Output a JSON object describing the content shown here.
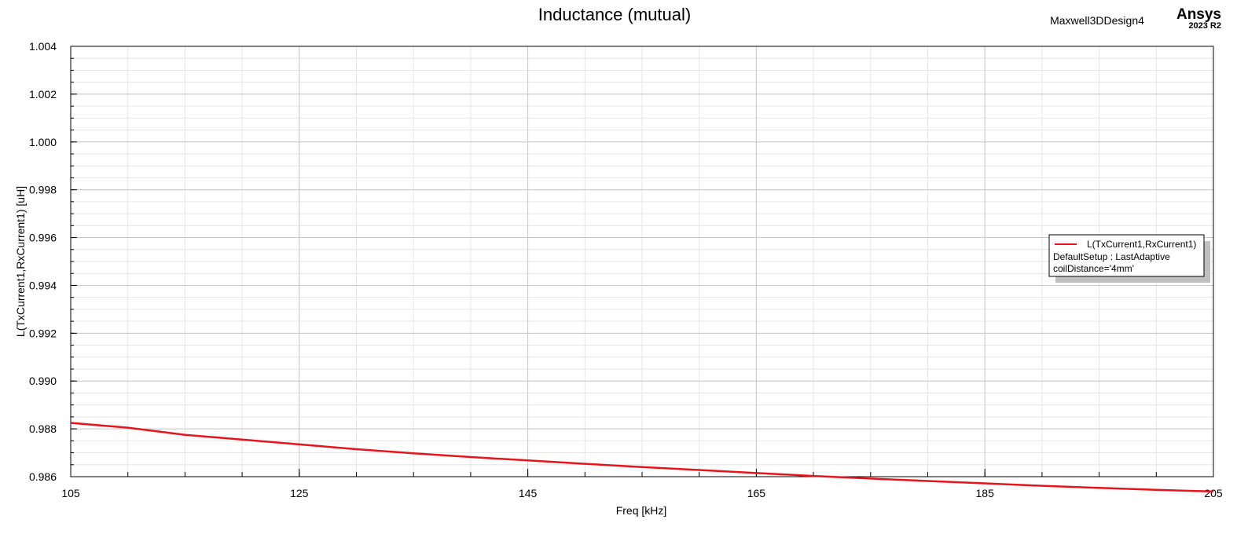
{
  "header": {
    "title": "Inductance (mutual)",
    "design_name": "Maxwell3DDesign4",
    "brand": "Ansys",
    "version": "2023 R2"
  },
  "legend": {
    "placement": "right",
    "series_label": "L(TxCurrent1,RxCurrent1)",
    "setup_line": "DefaultSetup : LastAdaptive",
    "param_line": "coilDistance='4mm'"
  },
  "colors": {
    "series": "#e8141b",
    "major_grid": "#c8c8c8",
    "minor_grid": "#e6e6e6",
    "axis": "#000000",
    "legend_shadow": "#c0c0c0"
  },
  "chart_data": {
    "type": "line",
    "title": "Inductance (mutual)",
    "xlabel": "Freq [kHz]",
    "ylabel": "L(TxCurrent1,RxCurrent1) [uH]",
    "xlim": [
      105,
      205
    ],
    "ylim": [
      0.986,
      1.004
    ],
    "x_ticks": [
      "105",
      "125",
      "145",
      "165",
      "185",
      "205"
    ],
    "y_ticks": [
      "0.986",
      "0.988",
      "0.990",
      "0.992",
      "0.994",
      "0.996",
      "0.998",
      "1.000",
      "1.002",
      "1.004"
    ],
    "grid": true,
    "series": [
      {
        "name": "L(TxCurrent1,RxCurrent1)",
        "x": [
          105,
          110,
          115,
          120,
          125,
          130,
          135,
          140,
          145,
          150,
          155,
          160,
          165,
          170,
          175,
          180,
          185,
          190,
          195,
          200,
          205
        ],
        "y": [
          0.98825,
          0.98805,
          0.98775,
          0.98755,
          0.98735,
          0.98715,
          0.98698,
          0.98682,
          0.98668,
          0.98654,
          0.9864,
          0.98628,
          0.98615,
          0.98603,
          0.98592,
          0.98582,
          0.98572,
          0.98562,
          0.98553,
          0.98545,
          0.98538
        ]
      }
    ]
  }
}
